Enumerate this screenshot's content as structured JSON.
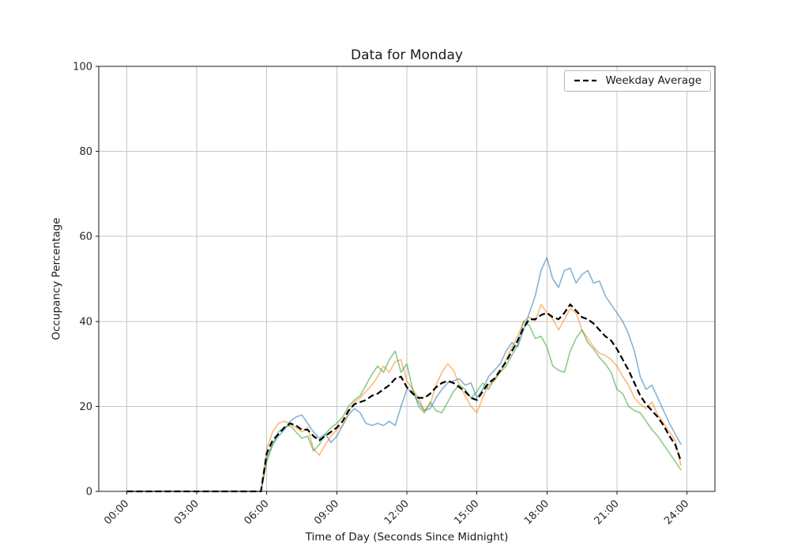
{
  "figure": {
    "background": "#ffffff"
  },
  "chart_data": {
    "type": "line",
    "title": "Data for Monday",
    "xlabel": "Time of Day (Seconds Since Midnight)",
    "ylabel": "Occupancy Percentage",
    "xlim_hours": [
      -1.2,
      25.2
    ],
    "ylim": [
      0,
      100
    ],
    "grid": true,
    "x_step_hours": 0.25,
    "x_tick_hours": [
      0,
      3,
      6,
      9,
      12,
      15,
      18,
      21,
      24
    ],
    "x_tick_labels": [
      "00:00",
      "03:00",
      "06:00",
      "09:00",
      "12:00",
      "15:00",
      "18:00",
      "21:00",
      "24:00"
    ],
    "y_ticks": [
      0,
      20,
      40,
      60,
      80,
      100
    ],
    "legend": {
      "position": "upper right",
      "entries": [
        "Weekday Average"
      ]
    },
    "series": [
      {
        "name": "",
        "color": "#1f77b4",
        "opacity": 0.55,
        "dashed": false,
        "values": [
          0,
          0,
          0,
          0,
          0,
          0,
          0,
          0,
          0,
          0,
          0,
          0,
          0,
          0,
          0,
          0,
          0,
          0,
          0,
          0,
          0,
          0,
          0,
          0,
          8,
          11,
          13,
          14.5,
          16.5,
          17.5,
          18,
          16,
          14,
          12.5,
          13.5,
          11.5,
          13,
          15.5,
          18,
          19.5,
          18.5,
          16,
          15.5,
          16,
          15.5,
          16.5,
          15.5,
          20,
          24,
          23.5,
          21,
          19,
          19.5,
          22,
          24,
          25.5,
          26,
          26.5,
          25,
          25.5,
          22,
          24,
          27,
          28.5,
          30,
          33,
          35,
          34,
          38,
          42,
          46,
          52,
          55,
          50,
          48,
          52,
          52.5,
          49,
          51,
          52,
          49,
          49.5,
          46,
          44,
          42,
          40,
          37,
          33,
          27,
          24,
          25,
          22,
          19,
          16,
          13.5,
          11
        ]
      },
      {
        "name": "",
        "color": "#ff7f0e",
        "opacity": 0.55,
        "dashed": false,
        "values": [
          0,
          0,
          0,
          0,
          0,
          0,
          0,
          0,
          0,
          0,
          0,
          0,
          0,
          0,
          0,
          0,
          0,
          0,
          0,
          0,
          0,
          0,
          0,
          0,
          10,
          14,
          16,
          16.5,
          16,
          15,
          14,
          15,
          10,
          8.5,
          11,
          13,
          14.5,
          15.5,
          18.5,
          21,
          22,
          23.5,
          25,
          27,
          29.5,
          28,
          30.5,
          31,
          26,
          24,
          22,
          19,
          20.5,
          25,
          28,
          30,
          28.5,
          25,
          22.5,
          20,
          18.5,
          22,
          25,
          26,
          28,
          31,
          34,
          36.5,
          40,
          41,
          40,
          44,
          42,
          40.5,
          38,
          40.5,
          43,
          42,
          38,
          36,
          34,
          32.5,
          32,
          31,
          29.5,
          27,
          25,
          22,
          20.5,
          19.5,
          21,
          18,
          16,
          14,
          12,
          6
        ]
      },
      {
        "name": "",
        "color": "#2ca02c",
        "opacity": 0.55,
        "dashed": false,
        "values": [
          0,
          0,
          0,
          0,
          0,
          0,
          0,
          0,
          0,
          0,
          0,
          0,
          0,
          0,
          0,
          0,
          0,
          0,
          0,
          0,
          0,
          0,
          0,
          0,
          7,
          11,
          14,
          15,
          15.5,
          14,
          12.5,
          13,
          9.5,
          11,
          13.5,
          15,
          16,
          17.5,
          20,
          21.5,
          22.5,
          25,
          27.5,
          29.5,
          28,
          31,
          33,
          28,
          30,
          24,
          20,
          18.5,
          21,
          19,
          18.5,
          21,
          23.5,
          25,
          24,
          22,
          23.5,
          25.5,
          24,
          26.5,
          28,
          29.5,
          32,
          34.5,
          40,
          39,
          36,
          36.5,
          34,
          29.5,
          28.5,
          28,
          33,
          36,
          38,
          35,
          33.5,
          31.5,
          30,
          28,
          24,
          23,
          20,
          19,
          18.5,
          16.5,
          14.5,
          13,
          11,
          9,
          7,
          5
        ]
      },
      {
        "name": "Weekday Average",
        "color": "#000000",
        "opacity": 1,
        "dashed": true,
        "values": [
          0,
          0,
          0,
          0,
          0,
          0,
          0,
          0,
          0,
          0,
          0,
          0,
          0,
          0,
          0,
          0,
          0,
          0,
          0,
          0,
          0,
          0,
          0,
          0,
          9,
          12,
          13.5,
          15,
          16,
          15.5,
          14.5,
          14.5,
          13,
          12,
          13,
          14,
          15,
          16.5,
          19,
          20.5,
          21,
          21.5,
          22.5,
          23,
          24,
          25,
          26.5,
          27,
          24.5,
          23,
          22,
          22,
          23,
          24.5,
          25.5,
          26,
          25.5,
          24.5,
          23.5,
          22,
          21.5,
          23.5,
          25.5,
          26.5,
          28.5,
          30.5,
          33,
          35.5,
          38.5,
          40.5,
          40.5,
          41.5,
          42,
          41,
          40.5,
          42,
          44,
          42.5,
          41,
          40.5,
          39.5,
          38,
          36.5,
          35.5,
          33.5,
          31,
          28.5,
          25.5,
          22.5,
          20.5,
          19,
          17.5,
          15.5,
          13,
          11,
          7
        ]
      }
    ]
  }
}
